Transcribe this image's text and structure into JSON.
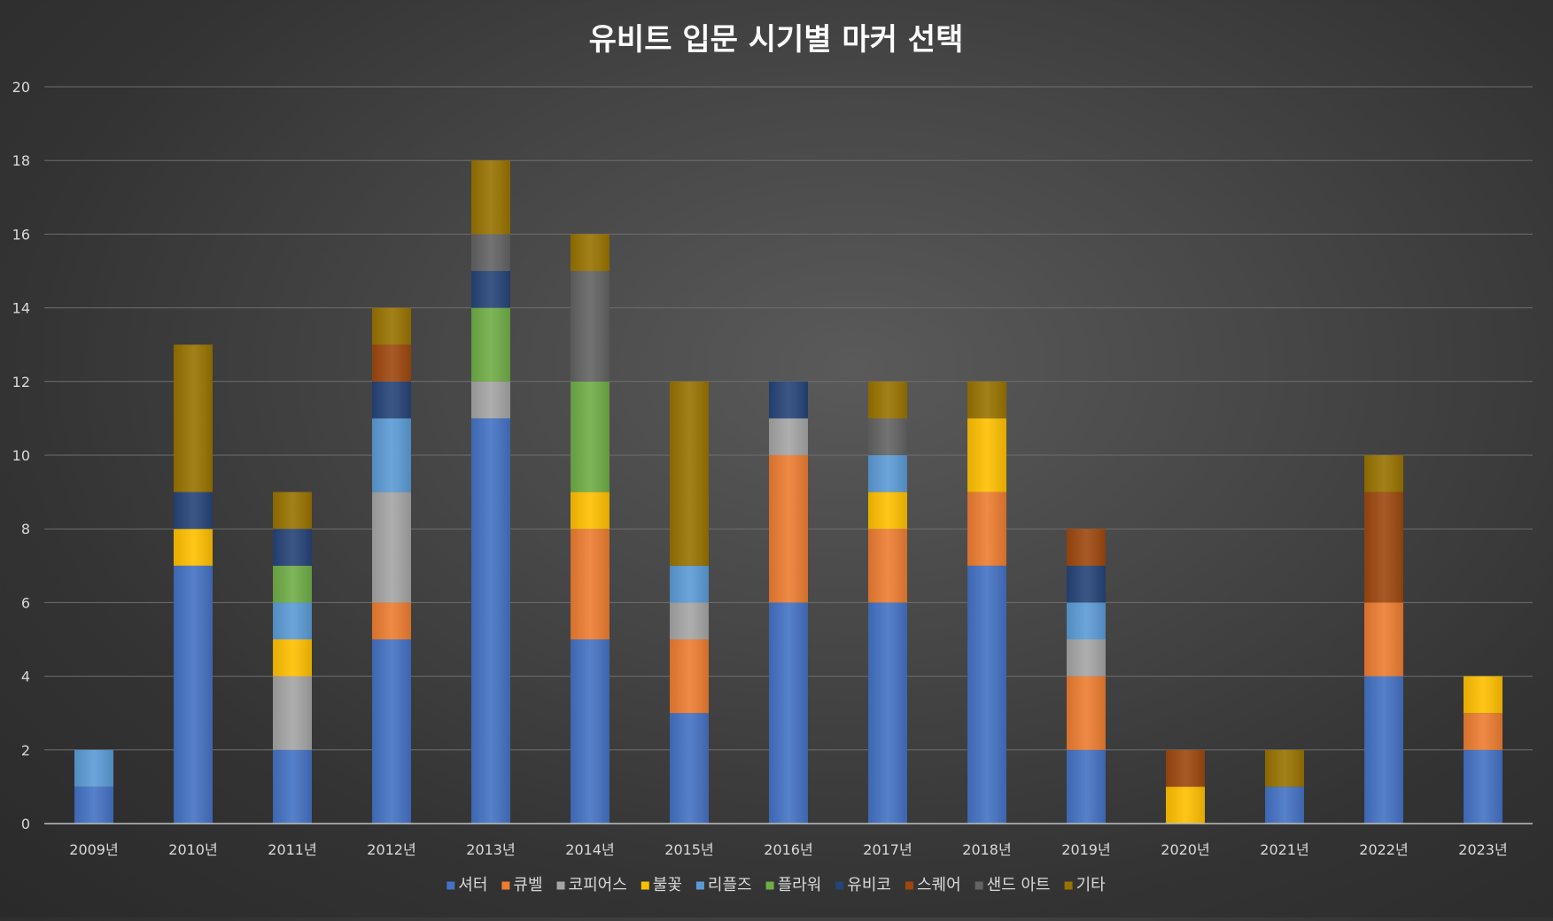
{
  "chart_data": {
    "type": "bar",
    "stacked": true,
    "title": "유비트 입문 시기별 마커 선택",
    "xlabel": "",
    "ylabel": "",
    "ylim": [
      0,
      20
    ],
    "yticks": [
      0,
      2,
      4,
      6,
      8,
      10,
      12,
      14,
      16,
      18,
      20
    ],
    "grid": true,
    "legend_position": "bottom",
    "categories": [
      "2009년",
      "2010년",
      "2011년",
      "2012년",
      "2013년",
      "2014년",
      "2015년",
      "2016년",
      "2017년",
      "2018년",
      "2019년",
      "2020년",
      "2021년",
      "2022년",
      "2023년"
    ],
    "series": [
      {
        "name": "셔터",
        "color": "#4472c4",
        "values": [
          1,
          7,
          2,
          5,
          11,
          5,
          3,
          6,
          6,
          7,
          2,
          0,
          1,
          4,
          2
        ]
      },
      {
        "name": "큐벨",
        "color": "#ed7d31",
        "values": [
          0,
          0,
          0,
          1,
          0,
          3,
          2,
          4,
          2,
          2,
          2,
          0,
          0,
          2,
          1
        ]
      },
      {
        "name": "코피어스",
        "color": "#a5a5a5",
        "values": [
          0,
          0,
          2,
          3,
          1,
          0,
          1,
          1,
          0,
          0,
          1,
          0,
          0,
          0,
          0
        ]
      },
      {
        "name": "불꽃",
        "color": "#ffc000",
        "values": [
          0,
          1,
          1,
          0,
          0,
          1,
          0,
          0,
          1,
          2,
          0,
          1,
          0,
          0,
          1
        ]
      },
      {
        "name": "리플즈",
        "color": "#5b9bd5",
        "values": [
          1,
          0,
          1,
          2,
          0,
          0,
          1,
          0,
          1,
          0,
          1,
          0,
          0,
          0,
          0
        ]
      },
      {
        "name": "플라워",
        "color": "#70ad47",
        "values": [
          0,
          0,
          1,
          0,
          2,
          3,
          0,
          0,
          0,
          0,
          0,
          0,
          0,
          0,
          0
        ]
      },
      {
        "name": "유비코",
        "color": "#264478",
        "values": [
          0,
          1,
          1,
          1,
          1,
          0,
          0,
          1,
          0,
          0,
          1,
          0,
          0,
          0,
          0
        ]
      },
      {
        "name": "스퀘어",
        "color": "#9e480e",
        "values": [
          0,
          0,
          0,
          1,
          0,
          0,
          0,
          0,
          0,
          0,
          1,
          1,
          0,
          3,
          0
        ]
      },
      {
        "name": "샌드 아트",
        "color": "#636363",
        "values": [
          0,
          0,
          0,
          0,
          1,
          3,
          0,
          0,
          1,
          0,
          0,
          0,
          0,
          0,
          0
        ]
      },
      {
        "name": "기타",
        "color": "#997300",
        "values": [
          0,
          4,
          1,
          1,
          2,
          1,
          5,
          0,
          1,
          1,
          0,
          0,
          1,
          1,
          0
        ]
      }
    ]
  }
}
